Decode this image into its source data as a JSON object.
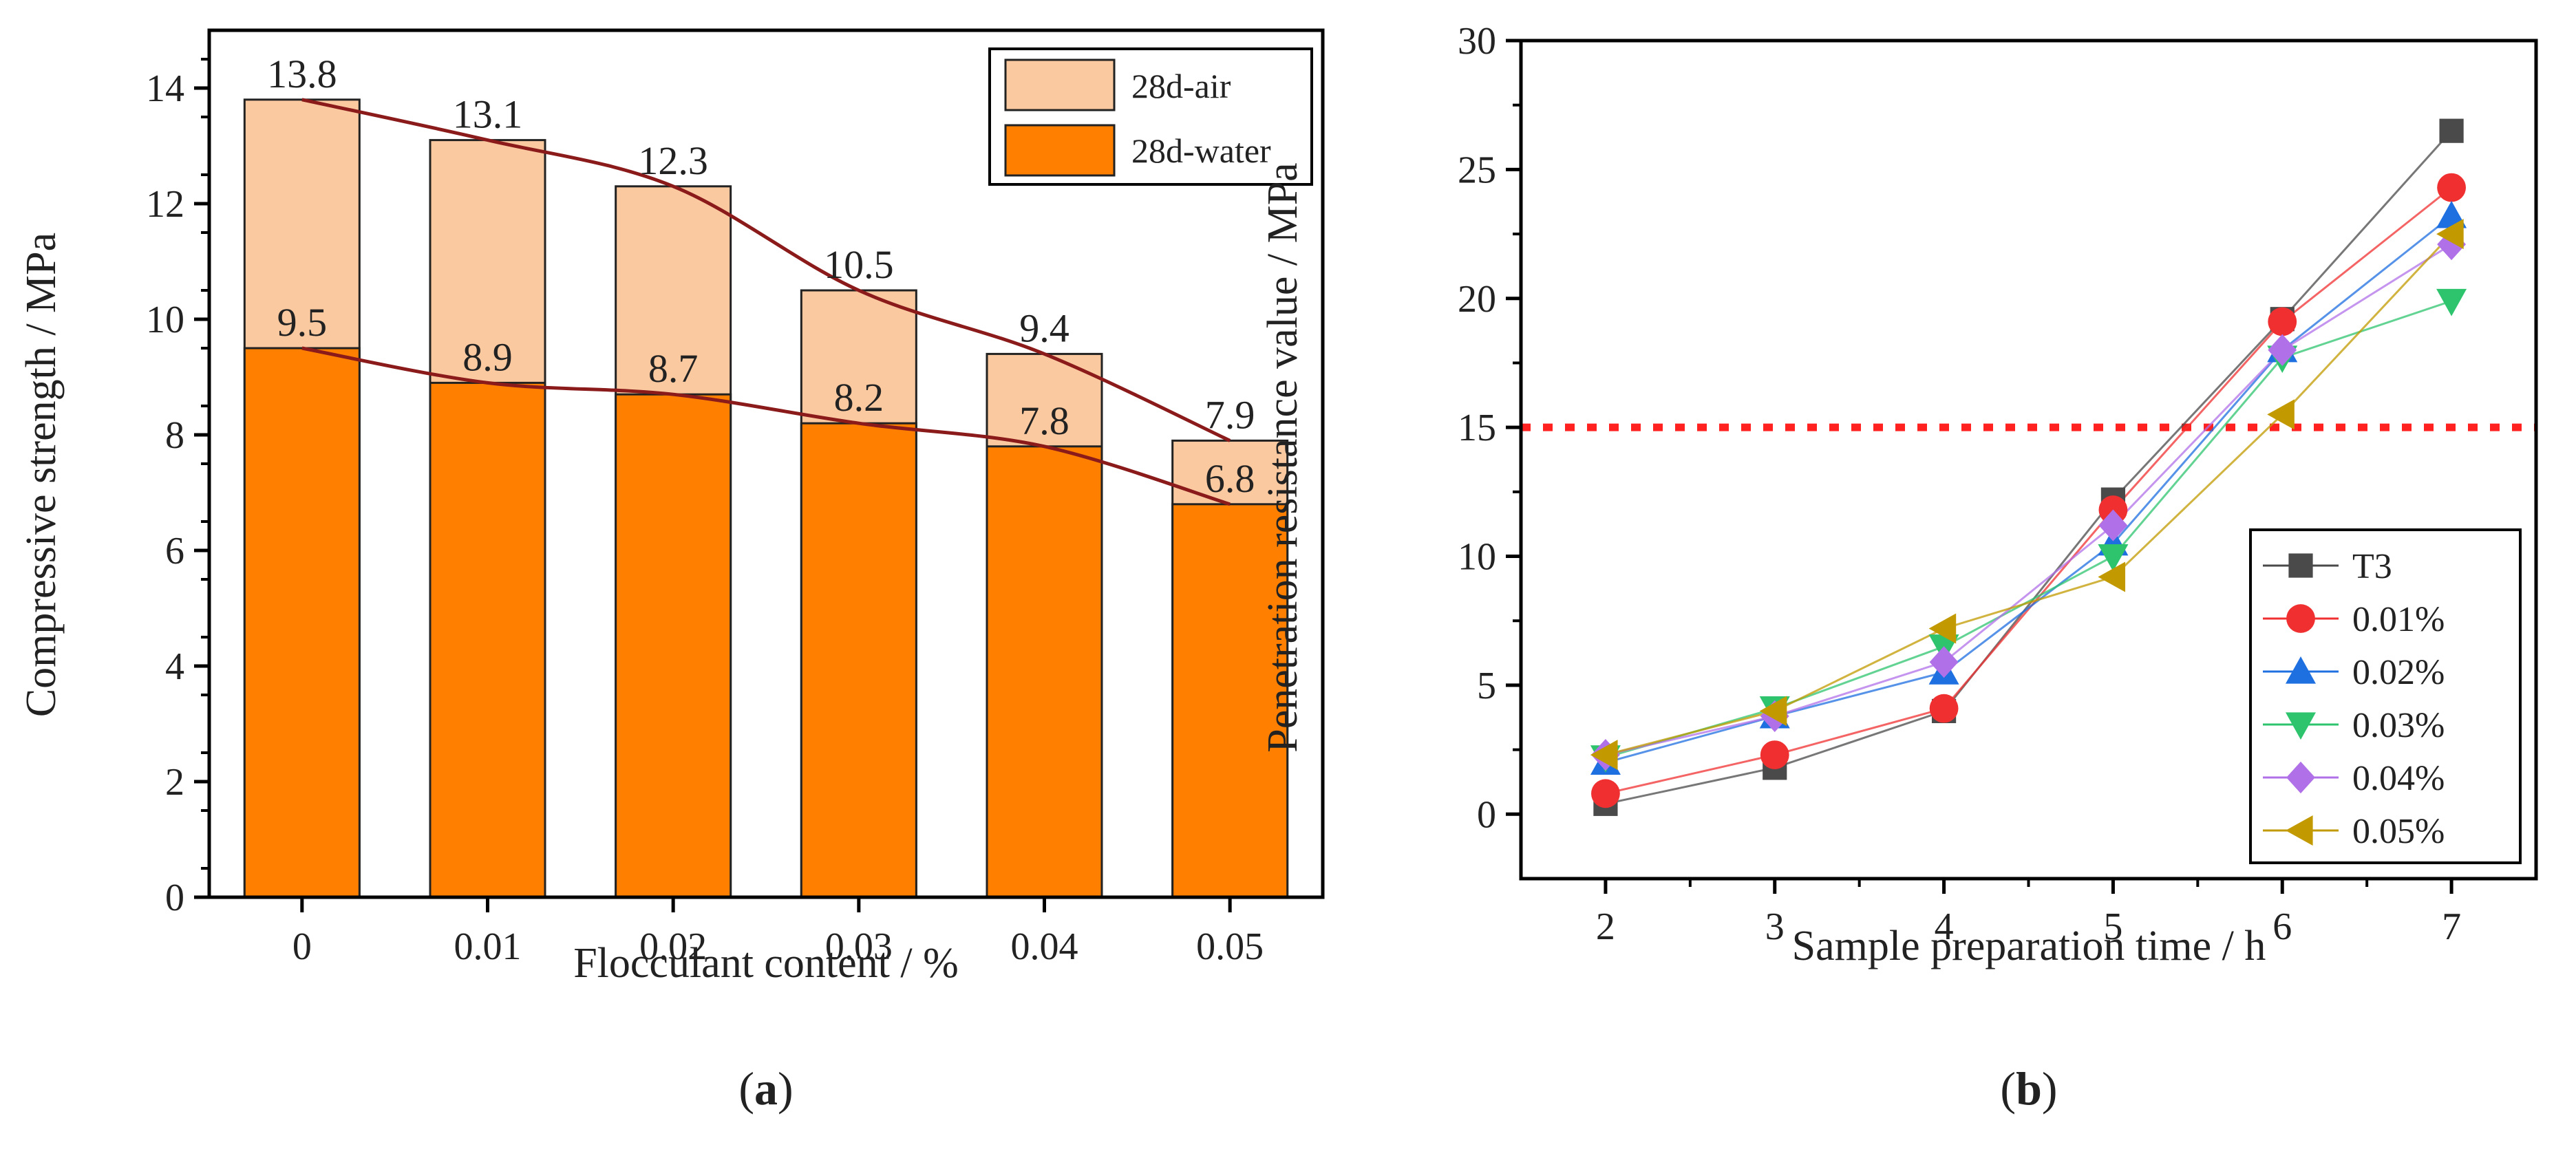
{
  "figure": {
    "panels": [
      {
        "open": "(",
        "letter": "a",
        "close": ")"
      },
      {
        "open": "(",
        "letter": "b",
        "close": ")"
      }
    ]
  },
  "chart_data": [
    {
      "type": "bar",
      "stacked": "overlay",
      "title": "",
      "xlabel": "Flocculant content / %",
      "ylabel": "Compressive strength / MPa",
      "categories": [
        "0",
        "0.01",
        "0.02",
        "0.03",
        "0.04",
        "0.05"
      ],
      "ylim": [
        0,
        15
      ],
      "yticks": [
        0,
        2,
        4,
        6,
        8,
        10,
        12,
        14
      ],
      "series": [
        {
          "name": "28d-air",
          "values": [
            13.8,
            13.1,
            12.3,
            10.5,
            9.4,
            7.9
          ],
          "color": "#FAC9A0"
        },
        {
          "name": "28d-water",
          "values": [
            9.5,
            8.9,
            8.7,
            8.2,
            7.8,
            6.8
          ],
          "color": "#FF7F00"
        }
      ],
      "data_labels": {
        "28d-air": [
          "13.8",
          "13.1",
          "12.3",
          "10.5",
          "9.4",
          "7.9"
        ],
        "28d-water": [
          "9.5",
          "8.9",
          "8.7",
          "8.2",
          "7.8",
          "6.8"
        ]
      },
      "trend_line_color": "#8B1A1A",
      "legend_position": "top-right"
    },
    {
      "type": "line",
      "title": "",
      "xlabel": "Sample preparation time / h",
      "ylabel": "Penetration resistance value / MPa",
      "x": [
        2,
        3,
        4,
        5,
        6,
        7
      ],
      "xlim": [
        1.5,
        7.5
      ],
      "ylim": [
        -2.5,
        30
      ],
      "xticks": [
        2,
        3,
        4,
        5,
        6,
        7
      ],
      "yticks": [
        0,
        5,
        10,
        15,
        20,
        25,
        30
      ],
      "reference_line": {
        "y": 15,
        "color": "#FF2020",
        "style": "dotted"
      },
      "series": [
        {
          "name": "T3",
          "marker": "square",
          "color": "#4A4A4A",
          "values": [
            0.4,
            1.8,
            4.0,
            12.2,
            19.2,
            26.5
          ]
        },
        {
          "name": "0.01%",
          "marker": "circle",
          "color": "#F03030",
          "values": [
            0.8,
            2.3,
            4.1,
            11.8,
            19.1,
            24.3
          ]
        },
        {
          "name": "0.02%",
          "marker": "triangle-up",
          "color": "#1E6FE0",
          "values": [
            2.0,
            3.8,
            5.5,
            10.5,
            18.0,
            23.2
          ]
        },
        {
          "name": "0.03%",
          "marker": "triangle-down",
          "color": "#2EC46E",
          "values": [
            2.2,
            4.1,
            6.5,
            10.0,
            17.7,
            19.9
          ]
        },
        {
          "name": "0.04%",
          "marker": "diamond",
          "color": "#B070E8",
          "values": [
            2.3,
            3.8,
            5.9,
            11.2,
            18.0,
            22.1
          ]
        },
        {
          "name": "0.05%",
          "marker": "triangle-left",
          "color": "#C29A00",
          "values": [
            2.3,
            4.0,
            7.2,
            9.2,
            15.5,
            22.5
          ]
        }
      ],
      "legend_position": "bottom-right"
    }
  ]
}
